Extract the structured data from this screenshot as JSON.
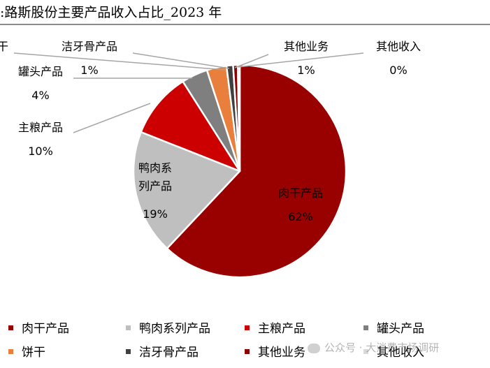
{
  "title": ":路斯股份主要产品收入占比_2023 年",
  "watermark": "公众号 · 大消费市场调研",
  "chart_data": {
    "type": "pie",
    "title": ":路斯股份主要产品收入占比_2023 年",
    "start_angle_deg": 0,
    "direction": "clockwise",
    "slices": [
      {
        "name": "肉干产品",
        "label": "肉干产品",
        "value": 62,
        "display": "62%",
        "color": "#990000"
      },
      {
        "name": "鸭肉系列产品",
        "label": "鸭肉系\n列产品",
        "value": 19,
        "display": "19%",
        "color": "#bfbfbf"
      },
      {
        "name": "主粮产品",
        "label": "主粮产品",
        "value": 10,
        "display": "10%",
        "color": "#cc0000"
      },
      {
        "name": "罐头产品",
        "label": "罐头产品",
        "value": 4,
        "display": "4%",
        "color": "#7f7f7f"
      },
      {
        "name": "饼干",
        "label": "干",
        "value": 3,
        "display": "",
        "color": "#e87f3c"
      },
      {
        "name": "洁牙骨产品",
        "label": "洁牙骨产品",
        "value": 1,
        "display": "1%",
        "color": "#404040"
      },
      {
        "name": "其他业务",
        "label": "其他业务",
        "value": 0.7,
        "display": "1%",
        "color": "#8b0000"
      },
      {
        "name": "其他收入",
        "label": "其他收入",
        "value": 0.3,
        "display": "0%",
        "color": "#d9d9d9"
      }
    ],
    "legend_position": "bottom",
    "legend": [
      "肉干产品",
      "鸭肉系列产品",
      "主粮产品",
      "罐头产品",
      "饼干",
      "洁牙骨产品",
      "其他业务",
      "其他收入"
    ]
  }
}
